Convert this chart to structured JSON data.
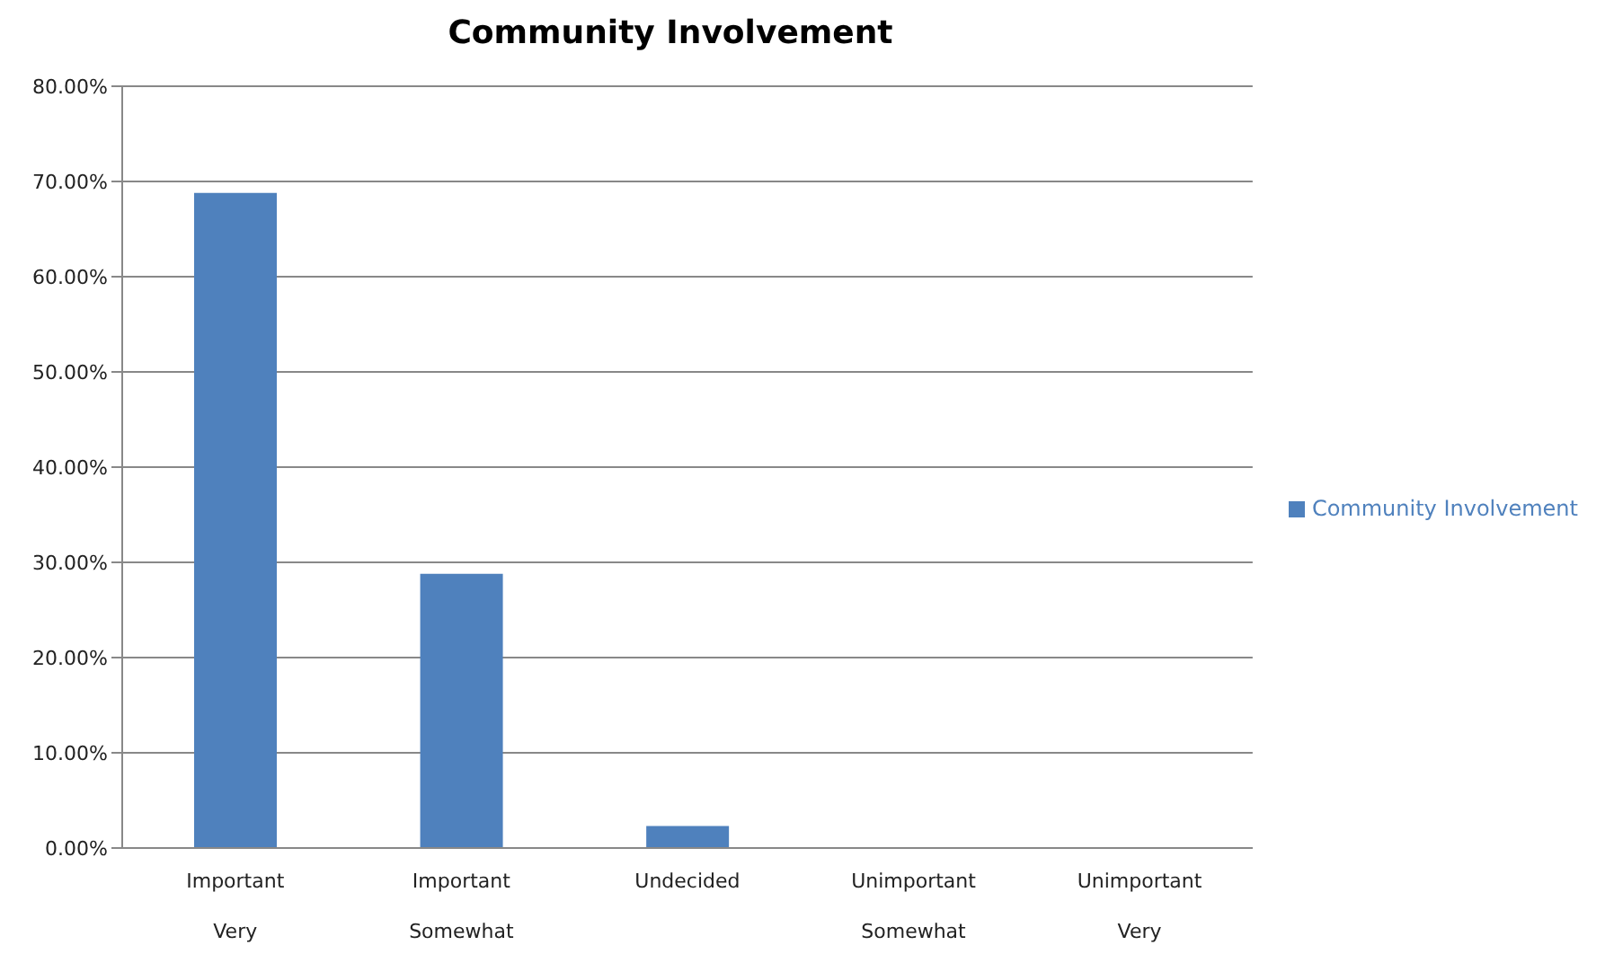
{
  "chart_data": {
    "type": "bar",
    "title": "Community Involvement",
    "categories": [
      "Important\nVery",
      "Important\nSomewhat",
      "Undecided",
      "Unimportant\nSomewhat",
      "Unimportant\nVery"
    ],
    "series": [
      {
        "name": "Community Involvement",
        "color": "#4f81bd",
        "values": [
          68.8,
          28.8,
          2.3,
          0,
          0
        ]
      }
    ],
    "ylim": [
      0,
      80
    ],
    "yticks": [
      {
        "value": 0,
        "label": "0.00%"
      },
      {
        "value": 10,
        "label": "10.00%"
      },
      {
        "value": 20,
        "label": "20.00%"
      },
      {
        "value": 30,
        "label": "30.00%"
      },
      {
        "value": 40,
        "label": "40.00%"
      },
      {
        "value": 50,
        "label": "50.00%"
      },
      {
        "value": 60,
        "label": "60.00%"
      },
      {
        "value": 70,
        "label": "70.00%"
      },
      {
        "value": 80,
        "label": "80.00%"
      }
    ],
    "grid": "y",
    "legend": "right"
  }
}
